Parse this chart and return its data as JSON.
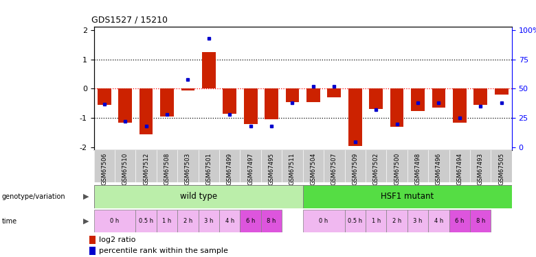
{
  "title": "GDS1527 / 15210",
  "samples": [
    "GSM67506",
    "GSM67510",
    "GSM67512",
    "GSM67508",
    "GSM67503",
    "GSM67501",
    "GSM67499",
    "GSM67497",
    "GSM67495",
    "GSM67511",
    "GSM67504",
    "GSM67507",
    "GSM67509",
    "GSM67502",
    "GSM67500",
    "GSM67498",
    "GSM67496",
    "GSM67494",
    "GSM67493",
    "GSM67505"
  ],
  "log2_ratio": [
    -0.55,
    -1.15,
    -1.55,
    -0.95,
    -0.05,
    1.25,
    -0.85,
    -1.2,
    -1.05,
    -0.45,
    -0.45,
    -0.3,
    -1.95,
    -0.7,
    -1.3,
    -0.75,
    -0.65,
    -1.15,
    -0.55,
    -0.2
  ],
  "percentile": [
    37,
    22,
    18,
    28,
    58,
    93,
    28,
    18,
    18,
    38,
    52,
    52,
    5,
    32,
    20,
    38,
    38,
    25,
    35,
    38
  ],
  "ylim": [
    -2.1,
    2.1
  ],
  "bar_color": "#CC2200",
  "dot_color": "#0000CC",
  "wt_color": "#bbeeaa",
  "hsf_color": "#55dd44",
  "time_light": "#f0b8f0",
  "time_dark": "#dd55dd",
  "bg_color": "#ffffff",
  "xtick_bg": "#cccccc",
  "time_spans": [
    [
      "0 h",
      0,
      2,
      "#f0b8f0"
    ],
    [
      "0.5 h",
      2,
      1,
      "#f0b8f0"
    ],
    [
      "1 h",
      3,
      1,
      "#f0b8f0"
    ],
    [
      "2 h",
      4,
      1,
      "#f0b8f0"
    ],
    [
      "3 h",
      5,
      1,
      "#f0b8f0"
    ],
    [
      "4 h",
      6,
      1,
      "#f0b8f0"
    ],
    [
      "6 h",
      7,
      1,
      "#dd55dd"
    ],
    [
      "8 h",
      8,
      1,
      "#dd55dd"
    ],
    [
      "0 h",
      10,
      2,
      "#f0b8f0"
    ],
    [
      "0.5 h",
      12,
      1,
      "#f0b8f0"
    ],
    [
      "1 h",
      13,
      1,
      "#f0b8f0"
    ],
    [
      "2 h",
      14,
      1,
      "#f0b8f0"
    ],
    [
      "3 h",
      15,
      1,
      "#f0b8f0"
    ],
    [
      "4 h",
      16,
      1,
      "#f0b8f0"
    ],
    [
      "6 h",
      17,
      1,
      "#dd55dd"
    ],
    [
      "8 h",
      18,
      1,
      "#dd55dd"
    ]
  ]
}
